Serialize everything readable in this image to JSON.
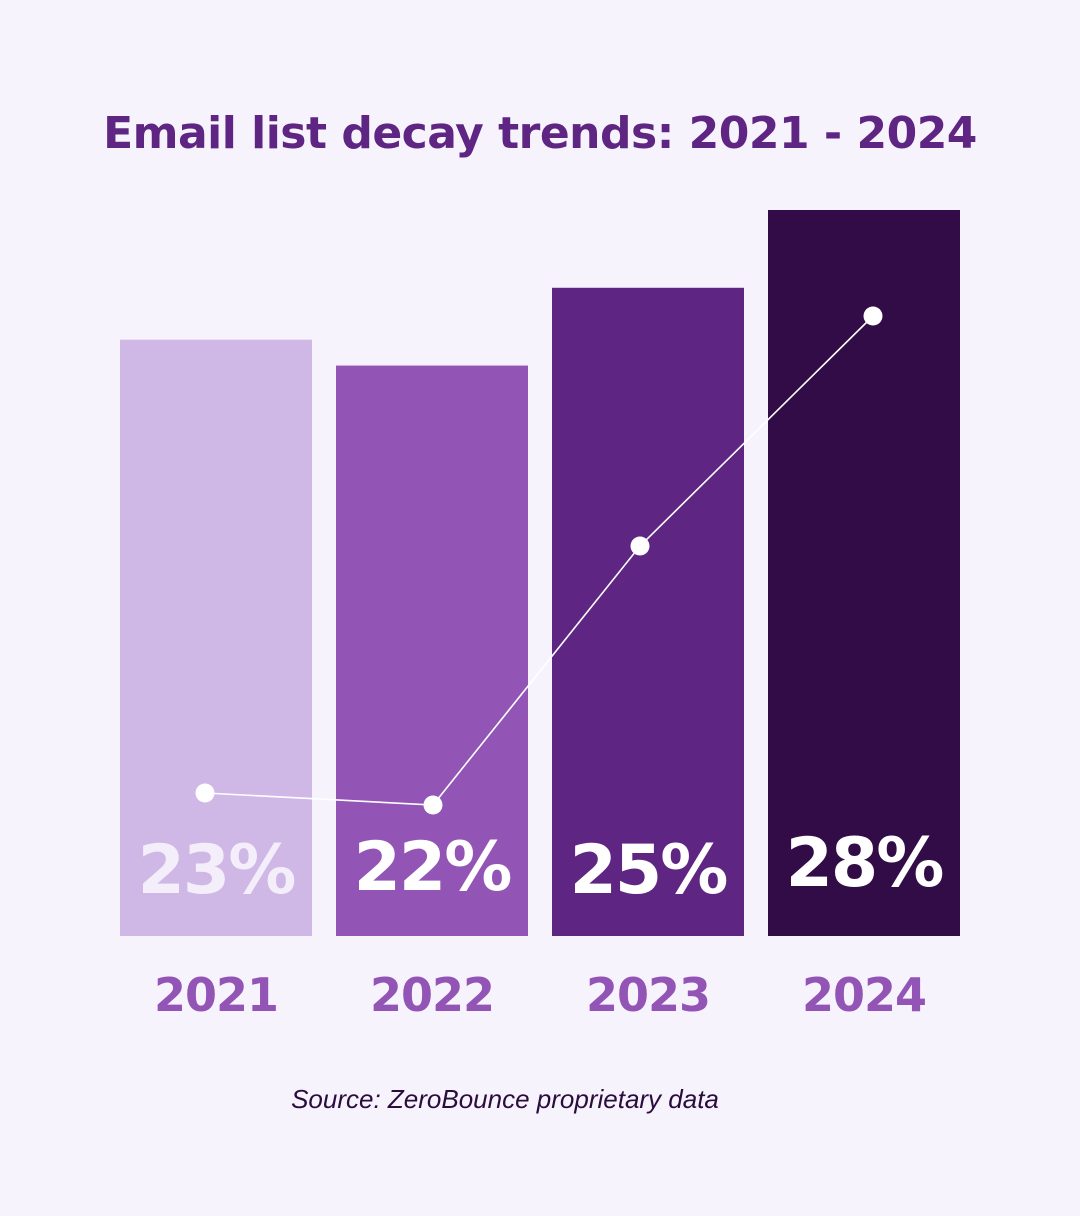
{
  "chart_data": {
    "type": "bar",
    "title": "Email list decay trends: 2021 - 2024",
    "categories": [
      "2021",
      "2022",
      "2023",
      "2024"
    ],
    "values": [
      23,
      22,
      25,
      28
    ],
    "value_labels": [
      "23%",
      "22%",
      "25%",
      "28%"
    ],
    "bar_colors": [
      "#cfb8e6",
      "#9254b5",
      "#5e2682",
      "#320c47"
    ],
    "trend_line": {
      "values": [
        23,
        22,
        25,
        28
      ],
      "color": "#ffffff"
    },
    "ylim": [
      0,
      28
    ],
    "grid": false,
    "xlabel": "",
    "ylabel": ""
  },
  "source": "Source: ZeroBounce proprietary data",
  "colors": {
    "background": "#f7f3fd",
    "title": "#5e2682",
    "year_label": "#9254b5"
  }
}
